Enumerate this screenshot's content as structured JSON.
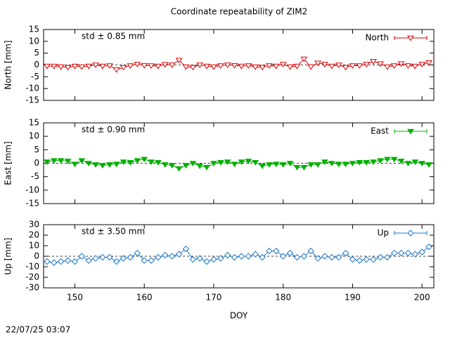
{
  "timestamp": "22/07/25 03:07",
  "chart_data": [
    {
      "type": "line",
      "title": "Coordinate repeatability of ZIM2",
      "ylabel": "North [mm]",
      "annotation": "std ± 0.85 mm",
      "xlim": [
        145.5,
        201.7
      ],
      "xticks": [
        150,
        160,
        170,
        180,
        190,
        200
      ],
      "ylim": [
        -15,
        15
      ],
      "yticks": [
        -15,
        -10,
        -5,
        0,
        5,
        10,
        15
      ],
      "zero_line": true,
      "legend": "top-right",
      "marker": "triangle-down-open",
      "x": [
        146,
        147,
        148,
        149,
        150,
        151,
        152,
        153,
        154,
        155,
        156,
        157,
        158,
        159,
        160,
        161,
        162,
        163,
        164,
        165,
        166,
        167,
        168,
        169,
        170,
        171,
        172,
        173,
        174,
        175,
        176,
        177,
        178,
        179,
        180,
        181,
        182,
        183,
        184,
        185,
        186,
        187,
        188,
        189,
        190,
        191,
        192,
        193,
        194,
        195,
        196,
        197,
        198,
        199,
        200,
        201
      ],
      "series": [
        {
          "name": "North",
          "color": "#dd0000",
          "values": [
            -0.5,
            -0.5,
            -0.8,
            -1,
            -0.5,
            -0.8,
            -0.5,
            0,
            -0.5,
            -0.3,
            -2,
            -1,
            -0.3,
            0.3,
            -0.2,
            -0.3,
            -0.5,
            0.2,
            0,
            2,
            -0.8,
            -1,
            0,
            -0.5,
            -0.8,
            -0.3,
            0,
            -0.2,
            -0.5,
            -0.3,
            -0.8,
            -1,
            -0.3,
            -0.5,
            0.3,
            -0.8,
            -0.5,
            2.5,
            -0.8,
            0.8,
            0.3,
            -0.5,
            0,
            -1,
            -0.3,
            -0.3,
            0.3,
            1.5,
            0.5,
            -0.8,
            -0.3,
            0.5,
            -0.3,
            -0.5,
            0.3,
            1
          ]
        }
      ]
    },
    {
      "type": "line",
      "ylabel": "East [mm]",
      "annotation": "std ± 0.90 mm",
      "xlim": [
        145.5,
        201.7
      ],
      "xticks": [
        150,
        160,
        170,
        180,
        190,
        200
      ],
      "ylim": [
        -15,
        15
      ],
      "yticks": [
        -15,
        -10,
        -5,
        0,
        5,
        10,
        15
      ],
      "zero_line": true,
      "legend": "top-right",
      "marker": "triangle-down-filled",
      "x": [
        146,
        147,
        148,
        149,
        150,
        151,
        152,
        153,
        154,
        155,
        156,
        157,
        158,
        159,
        160,
        161,
        162,
        163,
        164,
        165,
        166,
        167,
        168,
        169,
        170,
        171,
        172,
        173,
        174,
        175,
        176,
        177,
        178,
        179,
        180,
        181,
        182,
        183,
        184,
        185,
        186,
        187,
        188,
        189,
        190,
        191,
        192,
        193,
        194,
        195,
        196,
        197,
        198,
        199,
        200,
        201
      ],
      "series": [
        {
          "name": "East",
          "color": "#00b000",
          "values": [
            0.5,
            1,
            1,
            0.8,
            -0.3,
            1,
            0,
            -0.5,
            -0.8,
            -0.5,
            -0.3,
            0.5,
            0.3,
            1,
            1.5,
            0.5,
            0.3,
            -0.5,
            -0.8,
            -2,
            -0.8,
            0,
            -1,
            -1.5,
            0,
            0.3,
            0.5,
            -0.3,
            0.5,
            0.8,
            0.3,
            -1,
            -0.5,
            -0.3,
            -0.5,
            0,
            -1.5,
            -1.5,
            -0.5,
            -0.5,
            0.5,
            0,
            -0.3,
            -0.3,
            0,
            0.3,
            0.3,
            0.5,
            1,
            1.5,
            1.5,
            0.8,
            0,
            0.5,
            0,
            -0.5
          ]
        }
      ]
    },
    {
      "type": "line",
      "ylabel": "Up [mm]",
      "annotation": "std ± 3.50 mm",
      "xlabel": "DOY",
      "xlim": [
        145.5,
        201.7
      ],
      "xticks": [
        150,
        160,
        170,
        180,
        190,
        200
      ],
      "ylim": [
        -30,
        30
      ],
      "yticks": [
        -30,
        -20,
        -10,
        0,
        10,
        20,
        30
      ],
      "zero_line": true,
      "legend": "top-right",
      "marker": "diamond-open",
      "x": [
        146,
        147,
        148,
        149,
        150,
        151,
        152,
        153,
        154,
        155,
        156,
        157,
        158,
        159,
        160,
        161,
        162,
        163,
        164,
        165,
        166,
        167,
        168,
        169,
        170,
        171,
        172,
        173,
        174,
        175,
        176,
        177,
        178,
        179,
        180,
        181,
        182,
        183,
        184,
        185,
        186,
        187,
        188,
        189,
        190,
        191,
        192,
        193,
        194,
        195,
        196,
        197,
        198,
        199,
        200,
        201
      ],
      "series": [
        {
          "name": "Up",
          "color": "#1f78c8",
          "values": [
            -5,
            -6,
            -5,
            -4,
            -5,
            0,
            -4,
            -2,
            -1,
            -1,
            -5,
            -2,
            -1,
            3,
            -4,
            -4,
            -1,
            1,
            0,
            2,
            7,
            -3,
            -2,
            -5,
            -3,
            -2,
            1,
            -1,
            0,
            0,
            2,
            -1,
            5,
            5,
            0,
            3,
            -1,
            0,
            5,
            -2,
            0,
            -1,
            -1,
            3,
            -3,
            -4,
            -3,
            -3,
            -1,
            -1,
            3,
            3,
            3,
            2,
            4,
            9
          ]
        }
      ]
    }
  ]
}
